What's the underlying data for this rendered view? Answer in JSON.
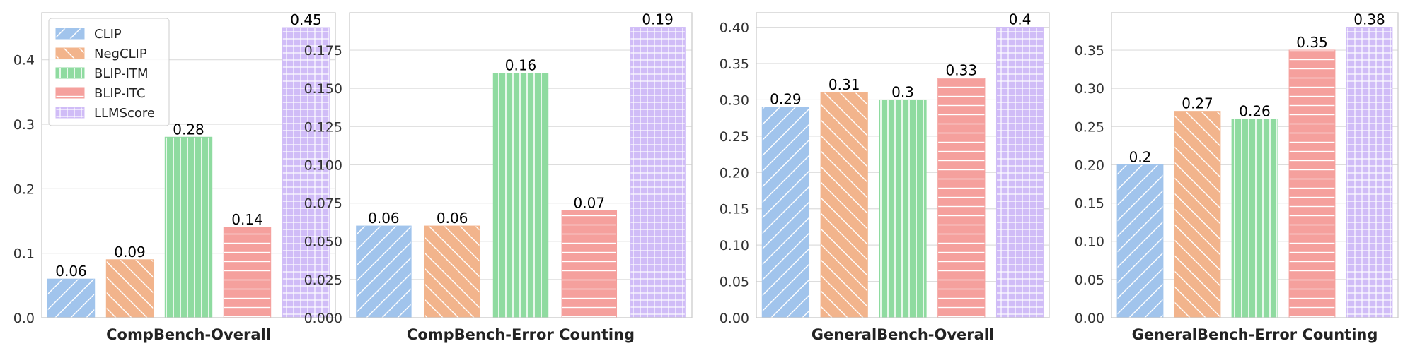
{
  "legend": {
    "placement": "top-left",
    "entries": [
      {
        "name": "CLIP",
        "color": "#a1c4ec",
        "hatch": "diag-up"
      },
      {
        "name": "NegCLIP",
        "color": "#f2b48c",
        "hatch": "diag-down"
      },
      {
        "name": "BLIP-ITM",
        "color": "#8fdba0",
        "hatch": "vertical"
      },
      {
        "name": "BLIP-ITC",
        "color": "#f5a09d",
        "hatch": "horizontal"
      },
      {
        "name": "LLMScore",
        "color": "#d0bcf7",
        "hatch": "grid"
      }
    ]
  },
  "chart_data": [
    {
      "type": "bar",
      "xlabel": "CompBench-Overall",
      "categories": [
        "CLIP",
        "NegCLIP",
        "BLIP-ITM",
        "BLIP-ITC",
        "LLMScore"
      ],
      "values": [
        0.06,
        0.09,
        0.28,
        0.14,
        0.45
      ],
      "value_labels": [
        "0.06",
        "0.09",
        "0.28",
        "0.14",
        "0.45"
      ],
      "ylim": [
        0,
        0.473
      ],
      "yticks": [
        0,
        0.1,
        0.2,
        0.3,
        0.4
      ],
      "ytick_labels": [
        "0.0",
        "0.1",
        "0.2",
        "0.3",
        "0.4"
      ],
      "grid": true,
      "show_legend": true
    },
    {
      "type": "bar",
      "xlabel": "CompBench-Error Counting",
      "categories": [
        "CLIP",
        "NegCLIP",
        "BLIP-ITM",
        "BLIP-ITC",
        "LLMScore"
      ],
      "values": [
        0.06,
        0.06,
        0.16,
        0.07,
        0.19
      ],
      "value_labels": [
        "0.06",
        "0.06",
        "0.16",
        "0.07",
        "0.19"
      ],
      "ylim": [
        0,
        0.1995
      ],
      "yticks": [
        0,
        0.025,
        0.05,
        0.075,
        0.1,
        0.125,
        0.15,
        0.175
      ],
      "ytick_labels": [
        "0.000",
        "0.025",
        "0.050",
        "0.075",
        "0.100",
        "0.125",
        "0.150",
        "0.175"
      ],
      "grid": true,
      "show_legend": false
    },
    {
      "type": "bar",
      "xlabel": "GeneralBench-Overall",
      "categories": [
        "CLIP",
        "NegCLIP",
        "BLIP-ITM",
        "BLIP-ITC",
        "LLMScore"
      ],
      "values": [
        0.29,
        0.31,
        0.3,
        0.33,
        0.4
      ],
      "value_labels": [
        "0.29",
        "0.31",
        "0.3",
        "0.33",
        "0.4"
      ],
      "ylim": [
        0,
        0.42
      ],
      "yticks": [
        0,
        0.05,
        0.1,
        0.15,
        0.2,
        0.25,
        0.3,
        0.35,
        0.4
      ],
      "ytick_labels": [
        "0.00",
        "0.05",
        "0.10",
        "0.15",
        "0.20",
        "0.25",
        "0.30",
        "0.35",
        "0.40"
      ],
      "grid": true,
      "show_legend": false
    },
    {
      "type": "bar",
      "xlabel": "GeneralBench-Error Counting",
      "categories": [
        "CLIP",
        "NegCLIP",
        "BLIP-ITM",
        "BLIP-ITC",
        "LLMScore"
      ],
      "values": [
        0.2,
        0.27,
        0.26,
        0.35,
        0.38
      ],
      "value_labels": [
        "0.2",
        "0.27",
        "0.26",
        "0.35",
        "0.38"
      ],
      "ylim": [
        0,
        0.399
      ],
      "yticks": [
        0,
        0.05,
        0.1,
        0.15,
        0.2,
        0.25,
        0.3,
        0.35
      ],
      "ytick_labels": [
        "0.00",
        "0.05",
        "0.10",
        "0.15",
        "0.20",
        "0.25",
        "0.30",
        "0.35"
      ],
      "grid": true,
      "show_legend": false
    }
  ]
}
